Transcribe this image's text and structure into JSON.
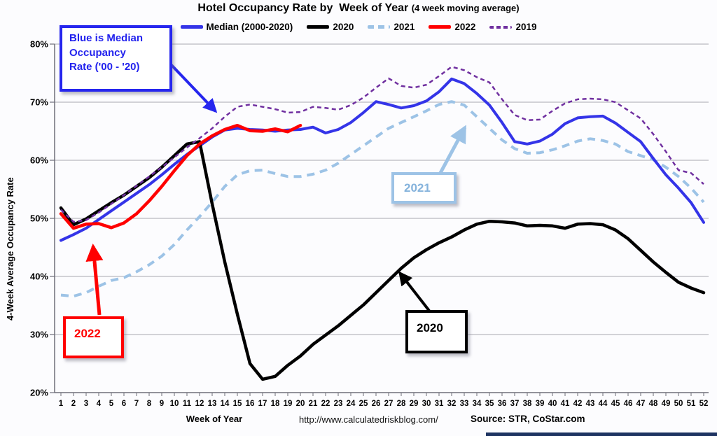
{
  "title": {
    "main": "Hotel Occupancy Rate by  Week of Year ",
    "paren": "(4 week moving average)"
  },
  "legend": [
    {
      "label": "Median (2000-2020)",
      "color": "#3434E8",
      "dash": null
    },
    {
      "label": "2020",
      "color": "#000000",
      "dash": null
    },
    {
      "label": "2021",
      "color": "#9DC3E6",
      "dash": "long"
    },
    {
      "label": "2022",
      "color": "#FF0000",
      "dash": null
    },
    {
      "label": "2019",
      "color": "#7030A0",
      "dash": "short"
    }
  ],
  "y_axis": {
    "title": "4-Week Average Occupancy Rate"
  },
  "x_axis": {
    "title": "Week of Year"
  },
  "footer": {
    "url": "http://www.calculatedriskblog.com/",
    "source": "Source: STR, CoStar.com"
  },
  "annotations": {
    "median_note": {
      "line1": "Blue is Median",
      "line2": "Occupancy",
      "line3": "Rate ('00 - '20)"
    },
    "label_2022": "2022",
    "label_2021": "2021",
    "label_2020": "2020"
  },
  "chart_data": {
    "type": "line",
    "title": "Hotel Occupancy Rate by Week of Year (4 week moving average)",
    "xlabel": "Week of Year",
    "ylabel": "4-Week Average Occupancy Rate",
    "x": [
      1,
      2,
      3,
      4,
      5,
      6,
      7,
      8,
      9,
      10,
      11,
      12,
      13,
      14,
      15,
      16,
      17,
      18,
      19,
      20,
      21,
      22,
      23,
      24,
      25,
      26,
      27,
      28,
      29,
      30,
      31,
      32,
      33,
      34,
      35,
      36,
      37,
      38,
      39,
      40,
      41,
      42,
      43,
      44,
      45,
      46,
      47,
      48,
      49,
      50,
      51,
      52
    ],
    "ylim": [
      20,
      80
    ],
    "y_ticks": [
      80,
      70,
      60,
      50,
      40,
      30,
      20
    ],
    "grid": true,
    "legend_position": "top",
    "series": [
      {
        "name": "Median (2000-2020)",
        "color": "#3434E8",
        "width": 4,
        "dash": null,
        "values": [
          46.2,
          47.2,
          48.3,
          49.8,
          51.3,
          52.8,
          54.3,
          55.8,
          57.5,
          59.3,
          61.0,
          62.5,
          64.0,
          65.2,
          65.5,
          65.3,
          65.2,
          65.0,
          65.2,
          65.3,
          65.7,
          64.7,
          65.3,
          66.5,
          68.2,
          70.1,
          69.6,
          69.0,
          69.4,
          70.2,
          71.8,
          74.0,
          73.2,
          71.5,
          69.5,
          66.5,
          63.2,
          62.8,
          63.3,
          64.5,
          66.3,
          67.3,
          67.5,
          67.6,
          66.4,
          64.8,
          63.2,
          60.3,
          57.5,
          55.2,
          52.7,
          49.3
        ]
      },
      {
        "name": "2020",
        "color": "#000000",
        "width": 4.5,
        "dash": null,
        "values": [
          51.8,
          48.9,
          49.9,
          51.3,
          52.7,
          54.0,
          55.5,
          57.0,
          58.8,
          60.8,
          62.8,
          63.2,
          52.5,
          42.5,
          33.5,
          25.0,
          22.3,
          22.8,
          24.7,
          26.3,
          28.3,
          29.9,
          31.5,
          33.3,
          35.1,
          37.2,
          39.3,
          41.4,
          43.2,
          44.6,
          45.8,
          46.8,
          48.0,
          49.0,
          49.5,
          49.4,
          49.2,
          48.7,
          48.8,
          48.7,
          48.3,
          49.0,
          49.1,
          48.9,
          48.0,
          46.5,
          44.5,
          42.5,
          40.7,
          39.0,
          38.0,
          37.2
        ]
      },
      {
        "name": "2021",
        "color": "#9DC3E6",
        "width": 4,
        "dash": "11 8",
        "values": [
          36.8,
          36.6,
          37.2,
          38.3,
          39.3,
          39.8,
          40.8,
          42.0,
          43.5,
          45.5,
          48.0,
          50.3,
          52.8,
          55.5,
          57.5,
          58.2,
          58.3,
          57.7,
          57.2,
          57.2,
          57.6,
          58.3,
          59.5,
          61.0,
          62.5,
          64.0,
          65.5,
          66.5,
          67.5,
          68.5,
          69.6,
          70.1,
          69.5,
          67.5,
          65.5,
          63.5,
          62.0,
          61.2,
          61.3,
          61.8,
          62.5,
          63.3,
          63.7,
          63.4,
          62.8,
          61.5,
          60.8,
          60.1,
          58.8,
          57.2,
          55.2,
          52.8
        ]
      },
      {
        "name": "2022",
        "color": "#FF0000",
        "width": 4.5,
        "dash": null,
        "values": [
          50.8,
          48.3,
          49.0,
          49.1,
          48.4,
          49.2,
          50.8,
          53.0,
          55.5,
          58.2,
          60.8,
          62.8,
          64.2,
          65.3,
          66.0,
          65.1,
          65.0,
          65.4,
          64.9,
          66.0
        ]
      },
      {
        "name": "2019",
        "color": "#7030A0",
        "width": 2.5,
        "dash": "6 4.5",
        "values": [
          51.5,
          49.4,
          49.7,
          51.0,
          52.5,
          54.0,
          55.6,
          57.2,
          58.8,
          60.5,
          62.2,
          63.8,
          65.5,
          67.5,
          69.2,
          69.6,
          69.2,
          68.8,
          68.2,
          68.3,
          69.2,
          69.0,
          68.7,
          69.5,
          70.8,
          72.5,
          74.1,
          72.8,
          72.5,
          73.0,
          74.5,
          76.1,
          75.5,
          74.3,
          73.4,
          70.5,
          67.8,
          66.9,
          67.0,
          68.5,
          69.8,
          70.5,
          70.6,
          70.5,
          70.0,
          68.6,
          67.2,
          64.5,
          61.5,
          58.3,
          57.8,
          55.9
        ]
      }
    ]
  }
}
